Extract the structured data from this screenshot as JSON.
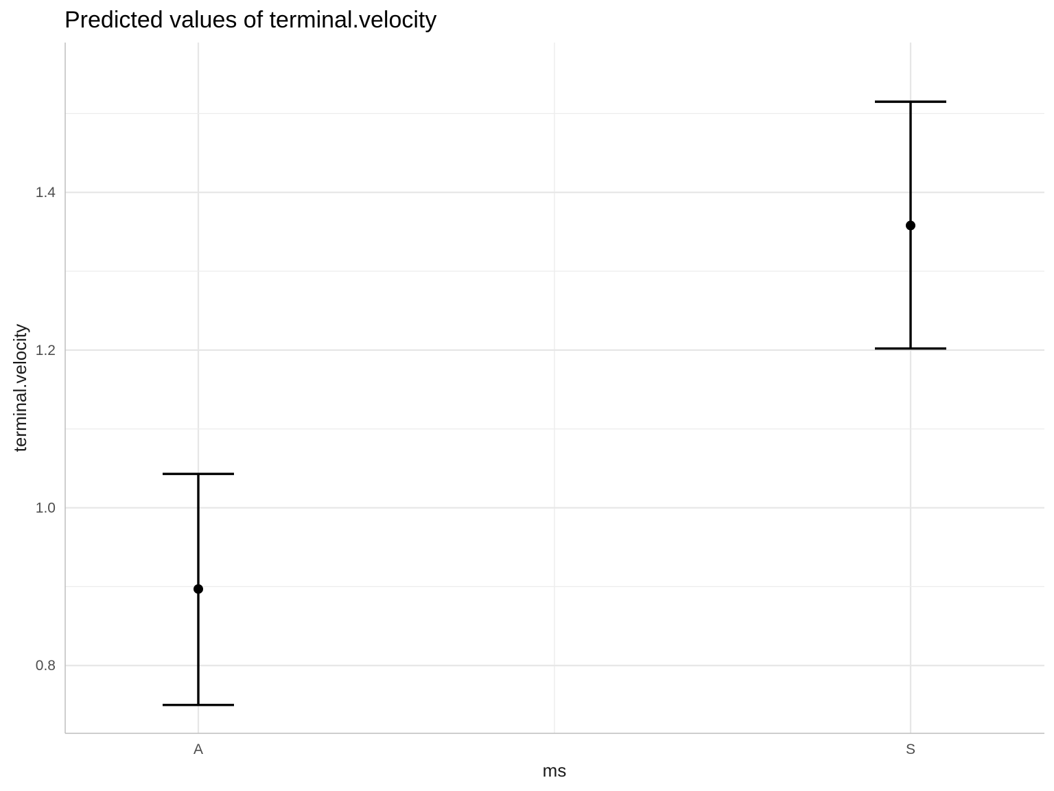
{
  "chart_data": {
    "type": "errorbar",
    "title": "Predicted values of terminal.velocity",
    "xlabel": "ms",
    "ylabel": "terminal.velocity",
    "categories": [
      "A",
      "S"
    ],
    "points": [
      {
        "category": "A",
        "estimate": 0.897,
        "lower": 0.75,
        "upper": 1.043
      },
      {
        "category": "S",
        "estimate": 1.358,
        "lower": 1.202,
        "upper": 1.515
      }
    ],
    "ylim": [
      0.714,
      1.59
    ],
    "yticks": [
      0.8,
      1.0,
      1.2,
      1.4
    ],
    "yticks_minor": [
      0.9,
      1.1,
      1.3,
      1.5
    ],
    "ytick_labels": [
      "0.8",
      "1.0",
      "1.2",
      "1.4"
    ],
    "grid": true,
    "legend": "none",
    "colors": {
      "mark": "#000000",
      "grid": "#e6e6e6",
      "axis": "#bdbdbd"
    }
  }
}
